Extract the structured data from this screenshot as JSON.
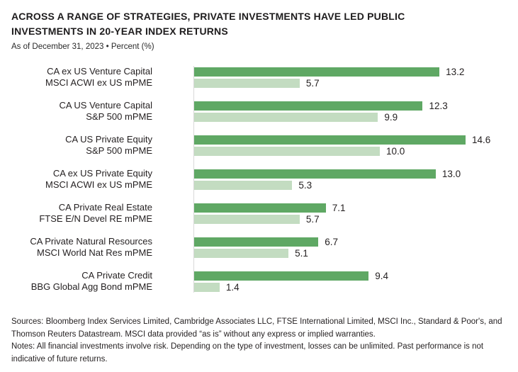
{
  "header": {
    "title": "ACROSS A RANGE OF STRATEGIES, PRIVATE INVESTMENTS HAVE LED PUBLIC INVESTMENTS IN 20-YEAR INDEX RETURNS",
    "subtitle": "As of December 31, 2023 • Percent (%)"
  },
  "chart_data": {
    "type": "bar",
    "orientation": "horizontal",
    "title": "ACROSS A RANGE OF STRATEGIES, PRIVATE INVESTMENTS HAVE LED PUBLIC INVESTMENTS IN 20-YEAR INDEX RETURNS",
    "subtitle": "As of December 31, 2023 • Percent (%)",
    "unit": "Percent (%)",
    "value_format": "one_decimal",
    "xlim": [
      0,
      15.2
    ],
    "grid": false,
    "legend": false,
    "data_labels": true,
    "colors": {
      "private_bar": "#5fa864",
      "public_bar": "#c3dcc1",
      "axis_line": "#d8d8d8",
      "text": "#231f20"
    },
    "groups": [
      {
        "private_label": "CA ex US Venture Capital",
        "private_value": 13.2,
        "public_label": "MSCI ACWI ex US mPME",
        "public_value": 5.7
      },
      {
        "private_label": "CA US Venture Capital",
        "private_value": 12.3,
        "public_label": "S&P 500 mPME",
        "public_value": 9.9
      },
      {
        "private_label": "CA US Private Equity",
        "private_value": 14.6,
        "public_label": "S&P 500 mPME",
        "public_value": 10.0
      },
      {
        "private_label": "CA ex US Private Equity",
        "private_value": 13.0,
        "public_label": "MSCI ACWI ex US mPME",
        "public_value": 5.3
      },
      {
        "private_label": "CA Private Real Estate",
        "private_value": 7.1,
        "public_label": "FTSE E/N Devel RE mPME",
        "public_value": 5.7
      },
      {
        "private_label": "CA Private Natural Resources",
        "private_value": 6.7,
        "public_label": "MSCI World Nat Res mPME",
        "public_value": 5.1
      },
      {
        "private_label": "CA Private Credit",
        "private_value": 9.4,
        "public_label": "BBG Global Agg Bond mPME",
        "public_value": 1.4
      }
    ]
  },
  "footer": {
    "sources": "Sources: Bloomberg Index Services Limited, Cambridge Associates LLC, FTSE International Limited, MSCI Inc., Standard & Poor's, and Thomson Reuters Datastream. MSCI data provided “as is” without any express or implied warranties.",
    "notes": "Notes: All financial investments involve risk. Depending on the type of investment, losses can be unlimited. Past performance is not indicative of future returns."
  }
}
